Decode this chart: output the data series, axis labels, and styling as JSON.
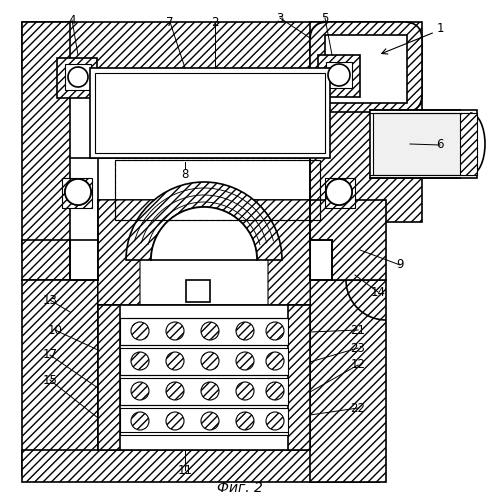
{
  "bg_color": "#ffffff",
  "line_color": "#000000",
  "figtext": "Фиг. 2",
  "label_fontsize": 8.5,
  "fig_fontsize": 10
}
